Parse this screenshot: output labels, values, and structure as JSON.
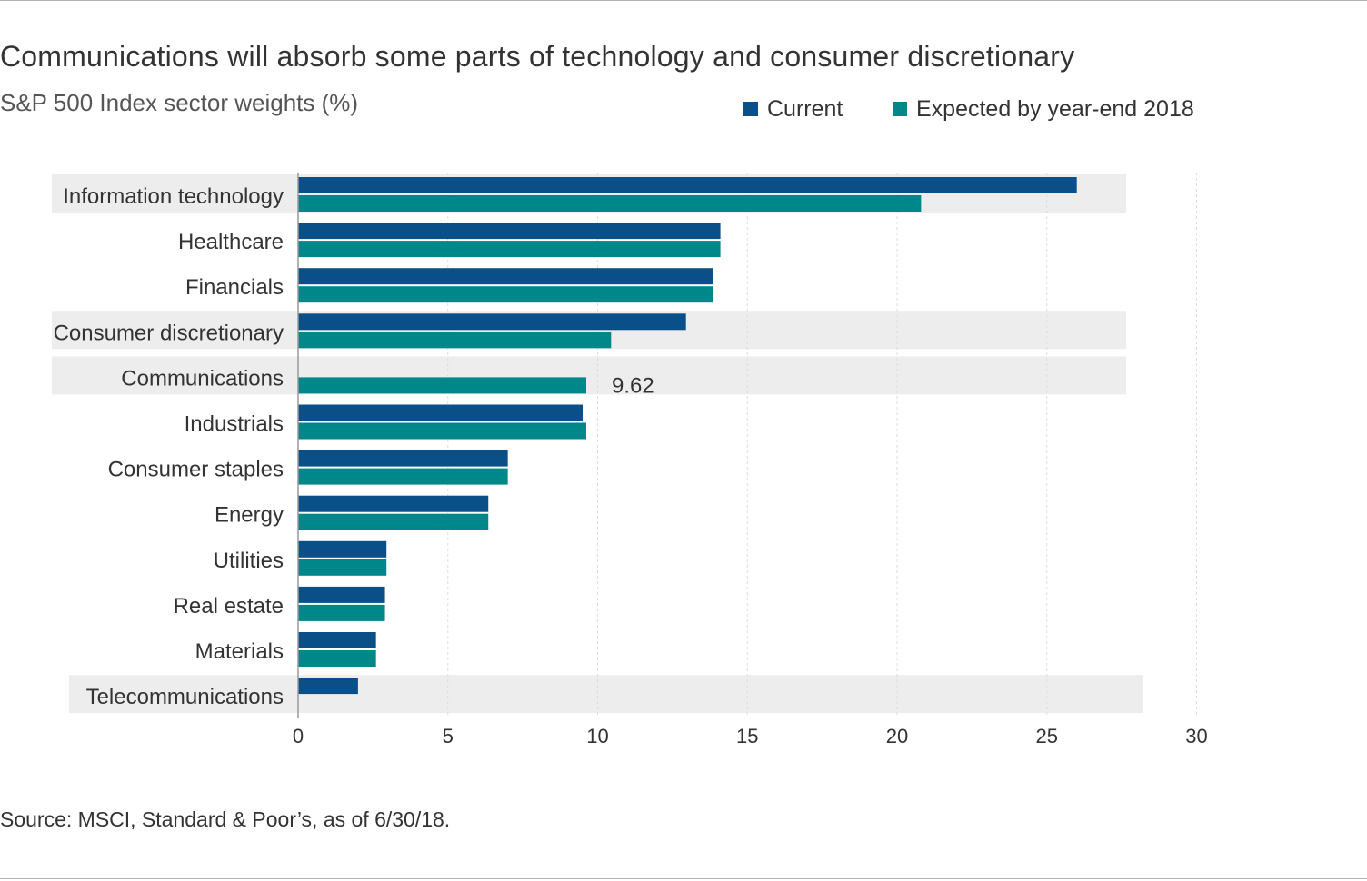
{
  "colors": {
    "current": "#0b4f88",
    "expected": "#00878a",
    "highlight_band": "#eeedee",
    "gridline": "#dddddd",
    "axis": "#999999",
    "text": "#333333"
  },
  "chart_data": {
    "type": "bar",
    "orientation": "horizontal",
    "title": "Communications will absorb some parts of technology and consumer discretionary",
    "subtitle": "S&P 500 Index sector weights (%)",
    "xlabel": "",
    "ylabel": "",
    "xlim": [
      0,
      30
    ],
    "xticks": [
      "0",
      "5",
      "10",
      "15",
      "20",
      "25",
      "30"
    ],
    "grid": "vertical dashed",
    "legend_position": "top-right",
    "categories": [
      "Information technology",
      "Healthcare",
      "Financials",
      "Consumer discretionary",
      "Communications",
      "Industrials",
      "Consumer staples",
      "Energy",
      "Utilities",
      "Real estate",
      "Materials",
      "Telecommunications"
    ],
    "highlighted_categories": [
      "Information technology",
      "Consumer discretionary",
      "Communications",
      "Telecommunications"
    ],
    "series": [
      {
        "name": "Current",
        "values": [
          26.0,
          14.1,
          13.85,
          12.95,
          null,
          9.5,
          7.0,
          6.35,
          2.95,
          2.9,
          2.6,
          2.0
        ]
      },
      {
        "name": "Expected by year-end 2018",
        "values": [
          20.8,
          14.1,
          13.85,
          10.45,
          9.62,
          9.62,
          7.0,
          6.35,
          2.95,
          2.9,
          2.6,
          null
        ]
      }
    ],
    "annotations": [
      {
        "category": "Communications",
        "series": "Expected by year-end 2018",
        "text": "9.62"
      }
    ]
  },
  "footer": {
    "source": "Source: MSCI, Standard & Poor’s, as of 6/30/18."
  }
}
